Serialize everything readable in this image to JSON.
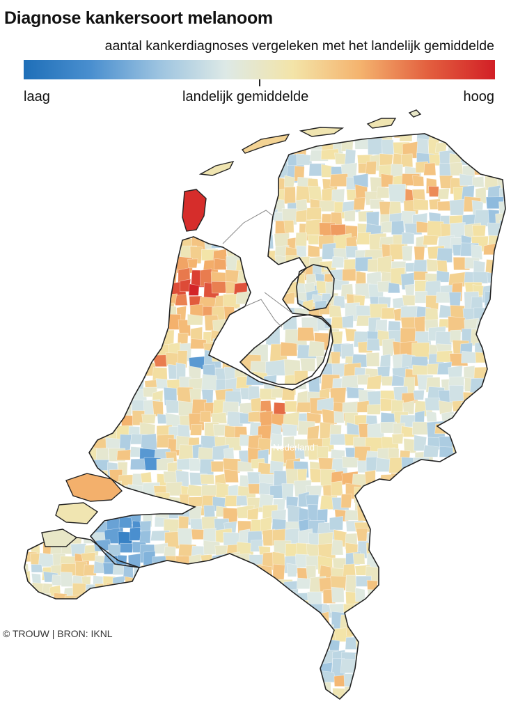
{
  "header": {
    "title": "Diagnose kankersoort melanoom",
    "subtitle": "aantal kankerdiagnoses vergeleken met het landelijk gemiddelde"
  },
  "legend": {
    "low_label": "laag",
    "mid_label": "landelijk gemiddelde",
    "high_label": "hoog",
    "colors": [
      "#1f6fb8",
      "#4a8fcf",
      "#9cc3e0",
      "#dde9e6",
      "#f3e4a8",
      "#f4b36e",
      "#e3603f",
      "#d21f26"
    ]
  },
  "map": {
    "country_label": "Nederland",
    "outline_color": "#222222",
    "water_color": "#ffffff"
  },
  "credit": "© TROUW | BRON: IKNL"
}
